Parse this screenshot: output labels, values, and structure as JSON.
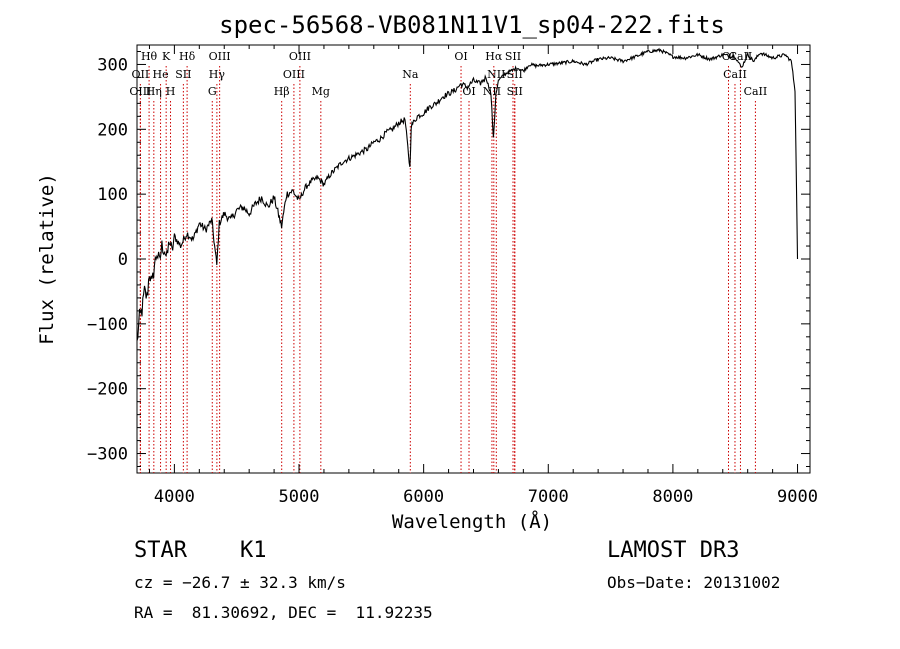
{
  "chart_data": {
    "type": "line",
    "title": "spec-56568-VB081N11V1_sp04-222.fits",
    "xlabel": "Wavelength (Å)",
    "ylabel": "Flux (relative)",
    "xlim": [
      3700,
      9100
    ],
    "ylim": [
      -330,
      330
    ],
    "x_ticks": [
      4000,
      5000,
      6000,
      7000,
      8000,
      9000
    ],
    "y_ticks": [
      -300,
      -200,
      -100,
      0,
      100,
      200,
      300
    ],
    "x_tick_labels": [
      "4000",
      "5000",
      "6000",
      "7000",
      "8000",
      "9000"
    ],
    "y_tick_labels": [
      "−300",
      "−200",
      "−100",
      "0",
      "100",
      "200",
      "300"
    ],
    "series": [
      {
        "name": "flux",
        "x": [
          3700,
          3720,
          3740,
          3760,
          3780,
          3800,
          3820,
          3840,
          3860,
          3880,
          3900,
          3920,
          3940,
          3960,
          3980,
          4000,
          4050,
          4100,
          4150,
          4200,
          4250,
          4300,
          4340,
          4360,
          4400,
          4450,
          4500,
          4550,
          4600,
          4650,
          4700,
          4750,
          4800,
          4860,
          4900,
          4950,
          5000,
          5050,
          5100,
          5150,
          5200,
          5250,
          5300,
          5350,
          5400,
          5450,
          5500,
          5550,
          5600,
          5650,
          5700,
          5750,
          5800,
          5850,
          5890,
          5900,
          5950,
          6000,
          6050,
          6100,
          6150,
          6200,
          6250,
          6300,
          6350,
          6400,
          6450,
          6500,
          6540,
          6560,
          6580,
          6600,
          6650,
          6700,
          6750,
          6800,
          6850,
          6900,
          7000,
          7100,
          7200,
          7300,
          7400,
          7500,
          7600,
          7700,
          7800,
          7900,
          8000,
          8100,
          8200,
          8300,
          8400,
          8500,
          8550,
          8600,
          8650,
          8700,
          8800,
          8900,
          8950,
          8980,
          9000
        ],
        "y": [
          -130,
          -90,
          -80,
          -50,
          -60,
          -20,
          -40,
          -10,
          10,
          -5,
          20,
          15,
          0,
          30,
          10,
          35,
          20,
          40,
          30,
          55,
          45,
          60,
          -10,
          55,
          70,
          60,
          75,
          80,
          70,
          85,
          95,
          80,
          95,
          50,
          100,
          105,
          90,
          110,
          120,
          125,
          115,
          130,
          140,
          150,
          155,
          160,
          165,
          170,
          180,
          185,
          195,
          200,
          210,
          215,
          140,
          205,
          220,
          225,
          235,
          240,
          250,
          255,
          260,
          270,
          265,
          275,
          270,
          280,
          255,
          185,
          255,
          275,
          285,
          290,
          295,
          290,
          300,
          298,
          300,
          302,
          305,
          300,
          308,
          310,
          305,
          312,
          320,
          322,
          312,
          310,
          315,
          308,
          315,
          312,
          295,
          315,
          305,
          318,
          310,
          315,
          305,
          260,
          0
        ]
      }
    ],
    "line_color": "#000000",
    "line_markers": {
      "color": "#cc0000",
      "top_row": [
        {
          "label": "Hθ",
          "x": 3797
        },
        {
          "label": "K",
          "x": 3934
        },
        {
          "label": "Hδ",
          "x": 4102
        },
        {
          "label": "OIII",
          "x": 4363
        },
        {
          "label": "OIII",
          "x": 5007
        },
        {
          "label": "OI",
          "x": 6300
        },
        {
          "label": "Hα",
          "x": 6563
        },
        {
          "label": "SII",
          "x": 6717
        },
        {
          "label": "OI",
          "x": 8446
        },
        {
          "label": "CaII",
          "x": 8542
        }
      ],
      "middle_row": [
        {
          "label": "OII",
          "x": 3727
        },
        {
          "label": "He",
          "x": 3889
        },
        {
          "label": "SII",
          "x": 4072
        },
        {
          "label": "Hγ",
          "x": 4341
        },
        {
          "label": "OIII",
          "x": 4959
        },
        {
          "label": "Na",
          "x": 5893
        },
        {
          "label": "NII",
          "x": 6583
        },
        {
          "label": "SII",
          "x": 6731
        },
        {
          "label": "CaII",
          "x": 8498
        }
      ],
      "bottom_row": [
        {
          "label": "OIII",
          "x": 3727
        },
        {
          "label": "Hη",
          "x": 3835
        },
        {
          "label": "H",
          "x": 3969
        },
        {
          "label": "G",
          "x": 4304
        },
        {
          "label": "Hβ",
          "x": 4861
        },
        {
          "label": "Mg",
          "x": 5175
        },
        {
          "label": "OI",
          "x": 6364
        },
        {
          "label": "NII",
          "x": 6548
        },
        {
          "label": "SII",
          "x": 6731
        },
        {
          "label": "CaII",
          "x": 8662
        }
      ]
    }
  },
  "info": {
    "object_class": "STAR",
    "subclass": "K1",
    "survey": "LAMOST DR3",
    "cz": "cz = −26.7 ± 32.3 km/s",
    "obs_date": "Obs−Date: 20131002",
    "coords": "RA =  81.30692, DEC =  11.92235"
  }
}
